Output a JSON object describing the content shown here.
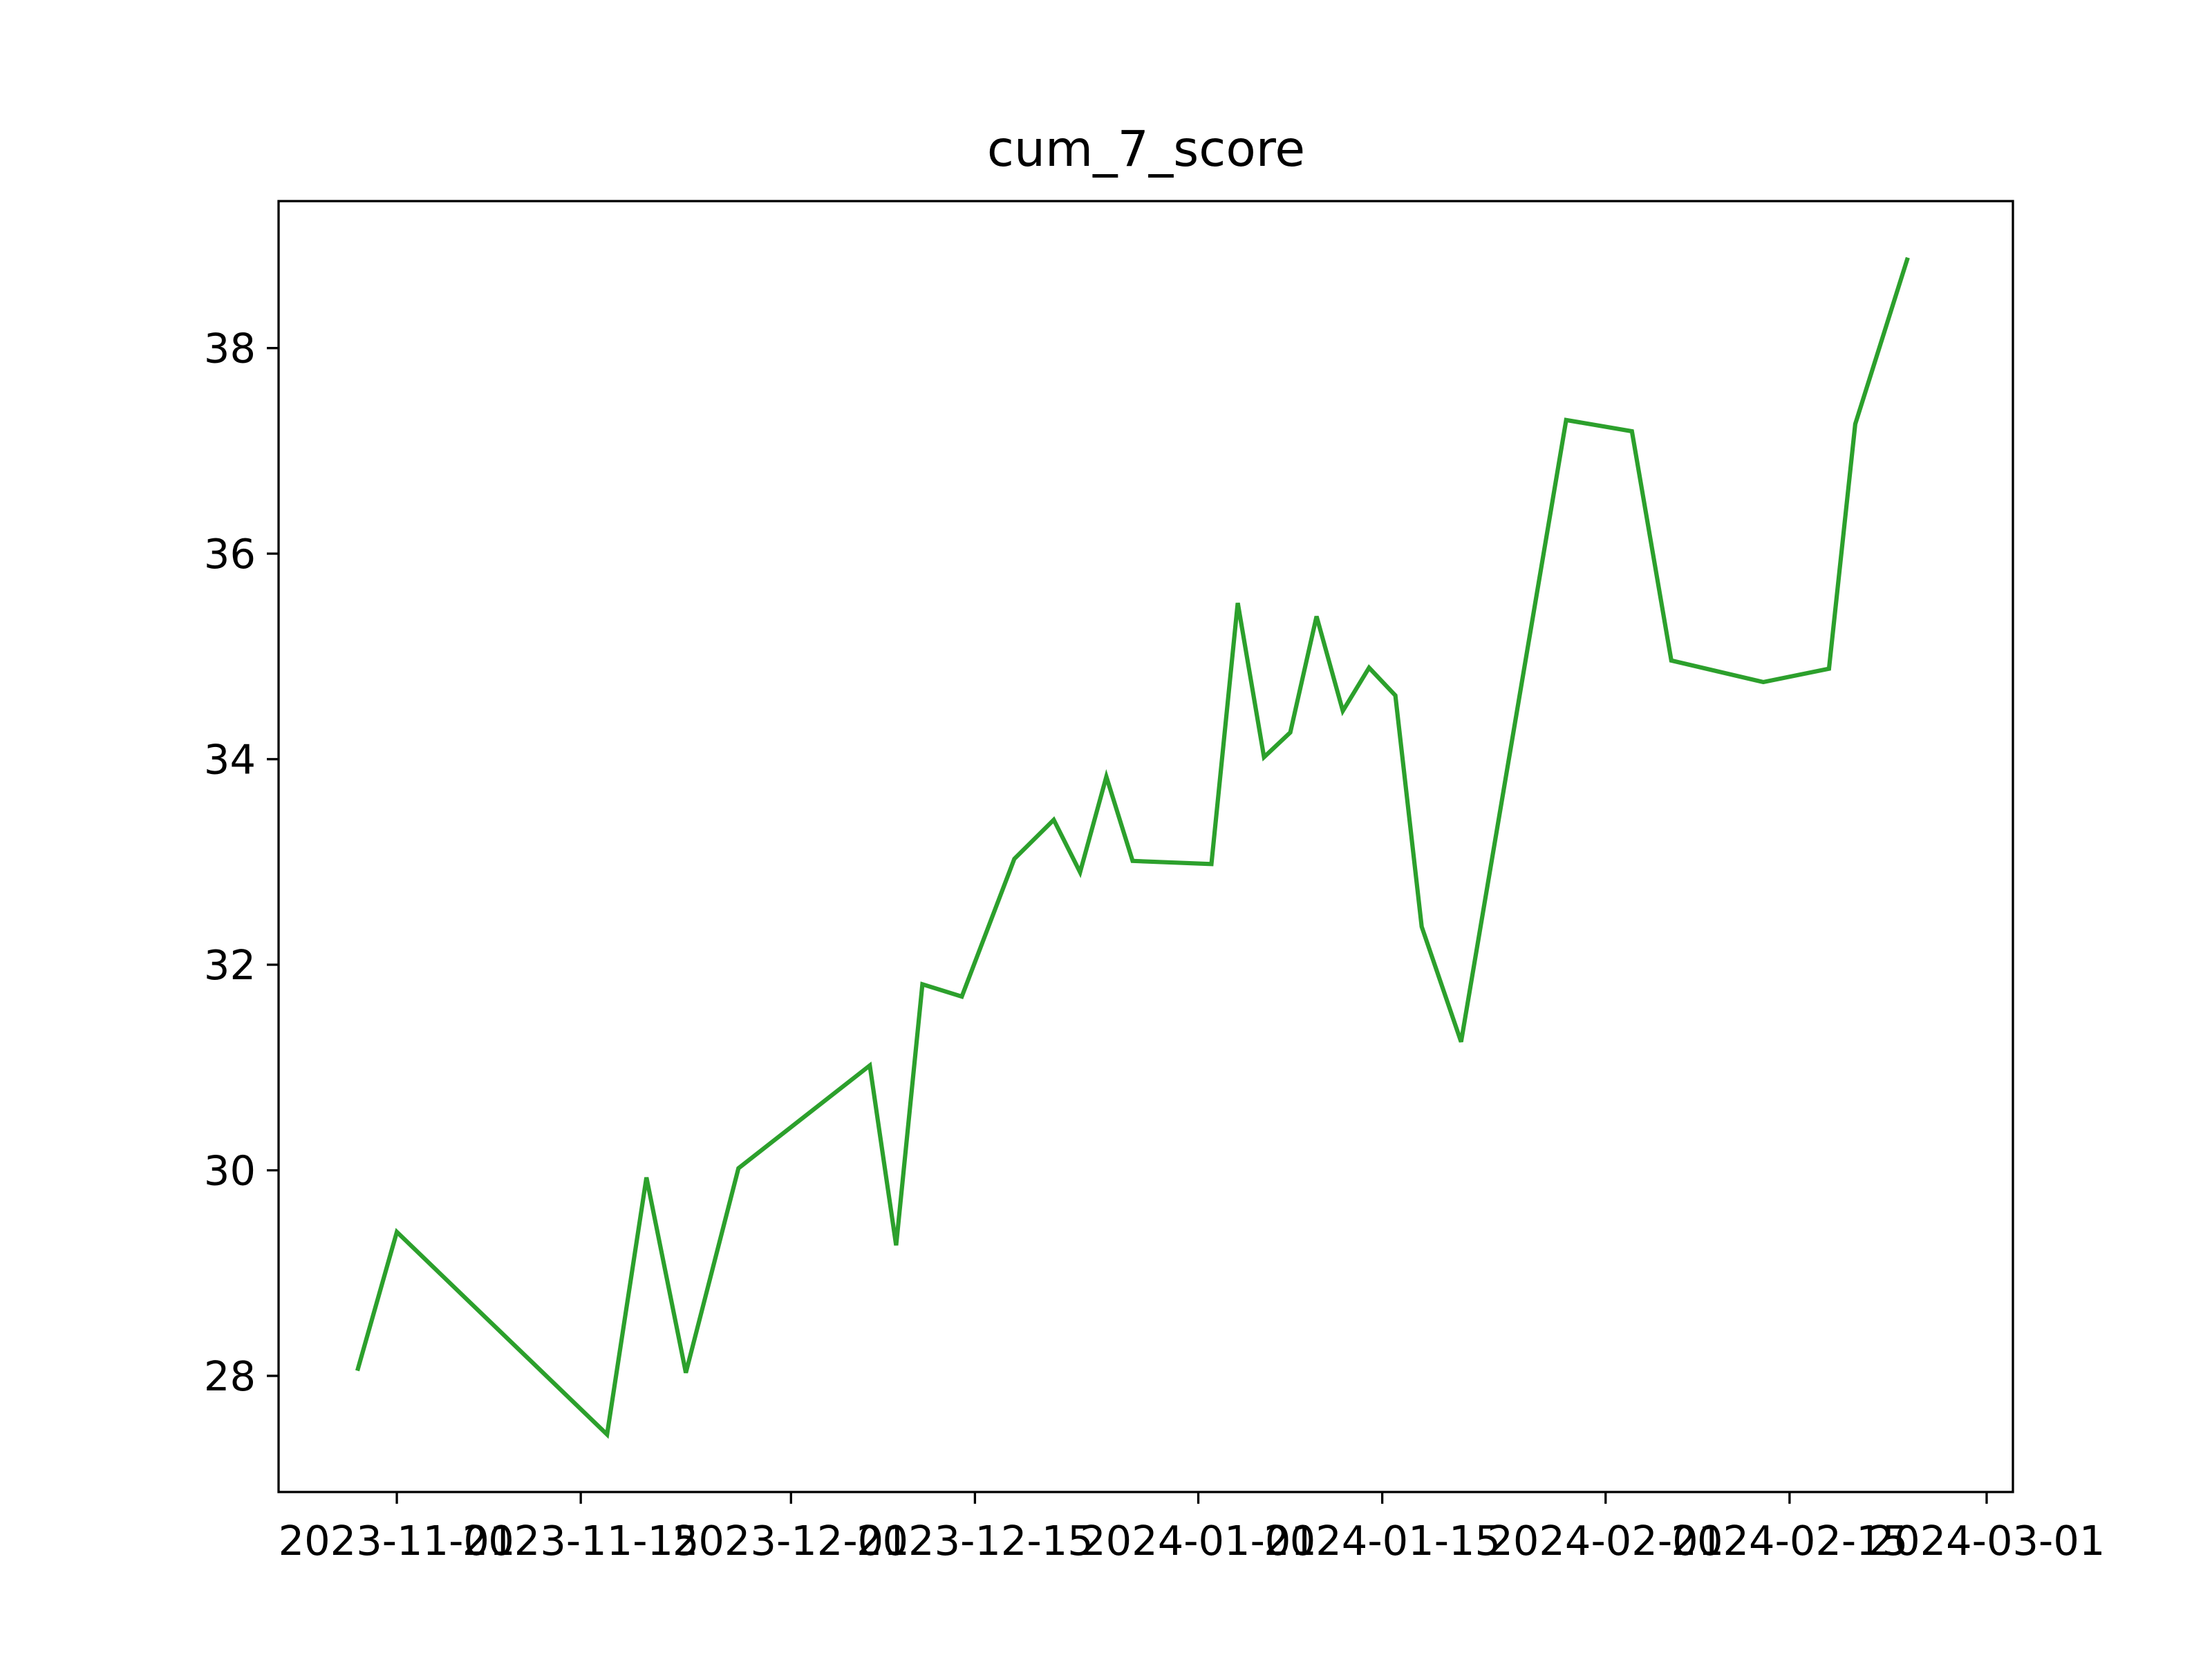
{
  "chart_data": {
    "type": "line",
    "title": "cum_7_score",
    "xlabel": "",
    "ylabel": "",
    "x_tick_labels": [
      "2023-11-01",
      "2023-11-15",
      "2023-12-01",
      "2023-12-15",
      "2024-01-01",
      "2024-01-15",
      "2024-02-01",
      "2024-02-15",
      "2024-03-01"
    ],
    "y_tick_labels": [
      "28",
      "30",
      "32",
      "34",
      "36",
      "38"
    ],
    "y_ticks": [
      28,
      30,
      32,
      34,
      36,
      38
    ],
    "xlim": [
      "2023-10-23",
      "2024-03-03"
    ],
    "ylim": [
      26.87,
      39.43
    ],
    "grid": false,
    "series": [
      {
        "color": "#2ca02c",
        "x": [
          "2023-10-29",
          "2023-11-01",
          "2023-11-17",
          "2023-11-20",
          "2023-11-23",
          "2023-11-27",
          "2023-12-07",
          "2023-12-09",
          "2023-12-11",
          "2023-12-14",
          "2023-12-18",
          "2023-12-21",
          "2023-12-23",
          "2023-12-25",
          "2023-12-27",
          "2024-01-02",
          "2024-01-04",
          "2024-01-06",
          "2024-01-08",
          "2024-01-10",
          "2024-01-12",
          "2024-01-14",
          "2024-01-16",
          "2024-01-18",
          "2024-01-21",
          "2024-01-29",
          "2024-02-03",
          "2024-02-06",
          "2024-02-13",
          "2024-02-18",
          "2024-02-20",
          "2024-02-24"
        ],
        "y": [
          28.05,
          29.4,
          27.43,
          29.93,
          28.03,
          30.02,
          31.02,
          29.27,
          31.81,
          31.69,
          33.03,
          33.41,
          32.9,
          33.83,
          33.01,
          32.98,
          35.52,
          34.02,
          34.26,
          35.39,
          34.47,
          34.89,
          34.62,
          32.37,
          31.25,
          37.3,
          37.19,
          34.96,
          34.75,
          34.88,
          37.26,
          38.88
        ]
      }
    ]
  }
}
